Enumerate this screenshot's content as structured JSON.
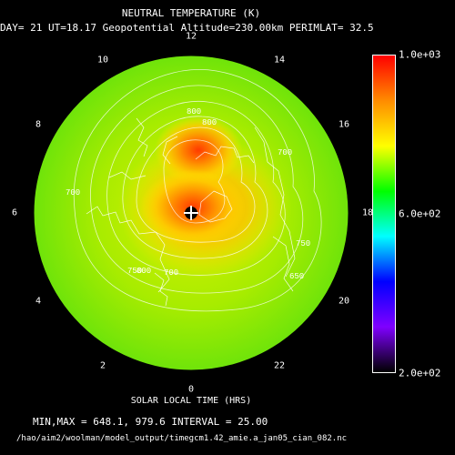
{
  "title": "NEUTRAL TEMPERATURE (K)",
  "subtitle": "DAY= 21 UT=18.17 Geopotential Altitude=230.00km PERIMLAT= 32.5",
  "xlabel": "SOLAR LOCAL TIME (HRS)",
  "minmax_text": "MIN,MAX =       648.1,      979.6 INTERVAL =      25.00",
  "file_path": "/hao/aim2/woolman/model_output/timegcm1.42_amie.a_jan05_cian_082.nc",
  "hour_labels": [
    "12",
    "10",
    "8",
    "6",
    "4",
    "2",
    "0",
    "22",
    "20",
    "18",
    "16",
    "14"
  ],
  "colorbar": {
    "ticks": [
      "1.0e+03",
      "6.0e+02",
      "2.0e+02"
    ],
    "colors": [
      "#ff0000",
      "#ff8c00",
      "#ffff00",
      "#00ff00",
      "#00ffff",
      "#0000ff",
      "#7f00ff",
      "#000000"
    ]
  },
  "chart_data": {
    "type": "heatmap",
    "projection": "polar (north pole)",
    "variable": "NEUTRAL TEMPERATURE (K)",
    "min": 648.1,
    "max": 979.6,
    "contour_interval": 25.0,
    "color_range": [
      200,
      1000
    ],
    "contour_labels": [
      "800",
      "800",
      "750",
      "700",
      "700",
      "700",
      "750",
      "650",
      "800"
    ],
    "hot_spots_approx_K": [
      {
        "region": "pole / dusk-midnight lobe",
        "value": 975
      },
      {
        "region": "near-pole noon-side lobe",
        "value": 925
      }
    ]
  }
}
